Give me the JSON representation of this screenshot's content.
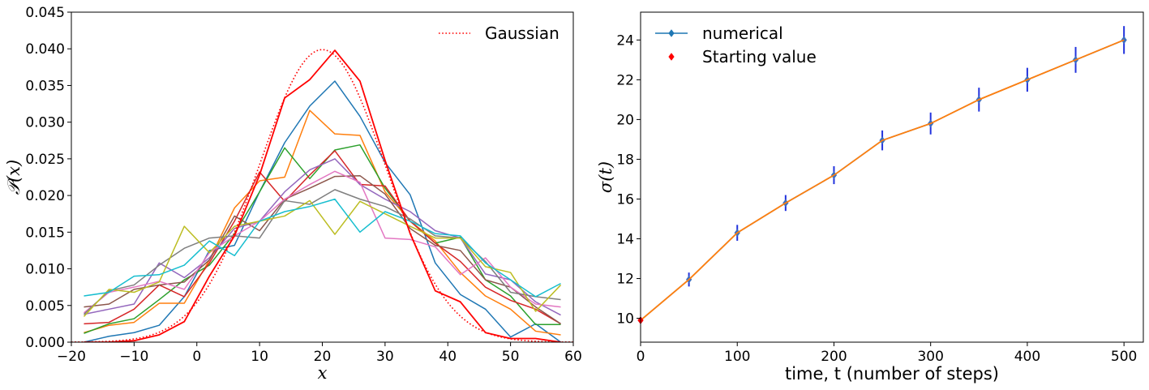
{
  "chart_data": [
    {
      "type": "line",
      "title": "",
      "xlabel": "x",
      "ylabel": "𝒫(x)",
      "xlim": [
        -20,
        60
      ],
      "ylim": [
        0.0,
        0.045
      ],
      "grid": false,
      "legend_placement": "top-right",
      "legend": [
        "Gaussian"
      ],
      "x_ticks": [
        -20,
        -10,
        0,
        10,
        20,
        30,
        40,
        50,
        60
      ],
      "x_tick_labels": [
        "−20",
        "−10",
        "0",
        "10",
        "20",
        "30",
        "40",
        "50",
        "60"
      ],
      "y_ticks": [
        0.0,
        0.005,
        0.01,
        0.015,
        0.02,
        0.025,
        0.03,
        0.035,
        0.04,
        0.045
      ],
      "y_tick_labels": [
        "0.000",
        "0.005",
        "0.010",
        "0.015",
        "0.020",
        "0.025",
        "0.030",
        "0.035",
        "0.040",
        "0.045"
      ],
      "x": [
        -18,
        -14,
        -10,
        -6,
        -2,
        2,
        6,
        10,
        14,
        18,
        22,
        26,
        30,
        34,
        38,
        42,
        46,
        50,
        54,
        58
      ],
      "series": [
        {
          "color": "#1f77b4",
          "values": [
            0.0,
            0.0008,
            0.0013,
            0.0023,
            0.0062,
            0.0125,
            0.0132,
            0.0205,
            0.0272,
            0.0322,
            0.0356,
            0.0308,
            0.0245,
            0.0201,
            0.0108,
            0.0065,
            0.0045,
            0.0007,
            0.0025,
            0.0
          ]
        },
        {
          "color": "#ff7f0e",
          "values": [
            0.0013,
            0.0023,
            0.0027,
            0.0053,
            0.0053,
            0.0112,
            0.0183,
            0.022,
            0.0225,
            0.0316,
            0.0284,
            0.0282,
            0.0205,
            0.0165,
            0.0138,
            0.0095,
            0.0063,
            0.0045,
            0.0015,
            0.001
          ]
        },
        {
          "color": "#2ca02c",
          "values": [
            0.0012,
            0.0025,
            0.0032,
            0.0058,
            0.0085,
            0.0105,
            0.0148,
            0.0205,
            0.0265,
            0.0223,
            0.0262,
            0.0269,
            0.021,
            0.0165,
            0.0135,
            0.0143,
            0.0085,
            0.0063,
            0.0024,
            0.0024
          ]
        },
        {
          "color": "#d62728",
          "values": [
            0.0025,
            0.0027,
            0.0045,
            0.0078,
            0.0062,
            0.0108,
            0.0165,
            0.0232,
            0.0192,
            0.0228,
            0.0261,
            0.0215,
            0.0213,
            0.0165,
            0.0135,
            0.011,
            0.0075,
            0.0057,
            0.0045,
            0.0025
          ]
        },
        {
          "color": "#9467bd",
          "values": [
            0.0038,
            0.0045,
            0.0052,
            0.0108,
            0.0088,
            0.0115,
            0.0155,
            0.0165,
            0.0205,
            0.0235,
            0.025,
            0.0215,
            0.0195,
            0.0178,
            0.0152,
            0.0142,
            0.0093,
            0.0085,
            0.0055,
            0.0037
          ]
        },
        {
          "color": "#8c564b",
          "values": [
            0.0048,
            0.0052,
            0.0072,
            0.0078,
            0.0082,
            0.0112,
            0.0172,
            0.0152,
            0.0195,
            0.021,
            0.0226,
            0.0227,
            0.0202,
            0.0155,
            0.0132,
            0.0125,
            0.0085,
            0.0075,
            0.0048,
            0.0025
          ]
        },
        {
          "color": "#e377c2",
          "values": [
            0.004,
            0.0068,
            0.0075,
            0.0083,
            0.0072,
            0.0122,
            0.0145,
            0.0165,
            0.0195,
            0.0215,
            0.0233,
            0.0218,
            0.0142,
            0.014,
            0.013,
            0.0092,
            0.0115,
            0.0075,
            0.0052,
            0.0048
          ]
        },
        {
          "color": "#7f7f7f",
          "values": [
            0.0038,
            0.007,
            0.0078,
            0.0105,
            0.0128,
            0.0142,
            0.0145,
            0.0142,
            0.0193,
            0.0188,
            0.0208,
            0.0195,
            0.0185,
            0.0168,
            0.0145,
            0.0142,
            0.011,
            0.0068,
            0.0062,
            0.0058
          ]
        },
        {
          "color": "#bcbd22",
          "values": [
            0.0035,
            0.0072,
            0.0068,
            0.0082,
            0.0158,
            0.0122,
            0.0158,
            0.0165,
            0.0172,
            0.0193,
            0.0147,
            0.0192,
            0.0175,
            0.0158,
            0.0142,
            0.0142,
            0.0103,
            0.0095,
            0.0042,
            0.0078
          ]
        },
        {
          "color": "#17becf",
          "values": [
            0.0063,
            0.0068,
            0.009,
            0.0092,
            0.0105,
            0.0138,
            0.0118,
            0.0165,
            0.0178,
            0.0185,
            0.0195,
            0.015,
            0.0178,
            0.0165,
            0.0148,
            0.0145,
            0.0108,
            0.0085,
            0.0062,
            0.008
          ]
        },
        {
          "color": "#ff0000",
          "values": [
            0.0,
            0.0,
            0.0002,
            0.001,
            0.0028,
            0.009,
            0.0145,
            0.0228,
            0.0333,
            0.0358,
            0.0398,
            0.0356,
            0.0248,
            0.0148,
            0.007,
            0.0055,
            0.0013,
            0.0005,
            0.0005,
            0.0
          ]
        },
        {
          "name": "Gaussian",
          "color": "#ff0000",
          "style": "dotted",
          "mean": 20,
          "std": 10,
          "peak": 0.0399
        }
      ]
    },
    {
      "type": "line",
      "title": "",
      "xlabel": "time, t (number of steps)",
      "ylabel": "σ(t)",
      "xlim": [
        0,
        520
      ],
      "ylim": [
        8.8,
        25.4
      ],
      "grid": false,
      "legend_placement": "top-left",
      "x_ticks": [
        0,
        100,
        200,
        300,
        400,
        500
      ],
      "x_tick_labels": [
        "0",
        "100",
        "200",
        "300",
        "400",
        "500"
      ],
      "y_ticks": [
        10,
        12,
        14,
        16,
        18,
        20,
        22,
        24
      ],
      "y_tick_labels": [
        "10",
        "12",
        "14",
        "16",
        "18",
        "20",
        "22",
        "24"
      ],
      "series": [
        {
          "name": "numerical",
          "color": "#1f77b4",
          "marker": "diamond",
          "x": [
            0,
            50,
            100,
            150,
            200,
            250,
            300,
            350,
            400,
            450,
            500
          ],
          "y": [
            9.9,
            11.95,
            14.3,
            15.8,
            17.2,
            18.95,
            19.8,
            21.0,
            22.0,
            23.0,
            24.0
          ],
          "error": [
            0.15,
            0.35,
            0.4,
            0.4,
            0.45,
            0.5,
            0.55,
            0.6,
            0.6,
            0.65,
            0.7
          ],
          "errorbar_color": "#2233dd"
        },
        {
          "color": "#ff7f0e",
          "x": [
            0,
            50,
            100,
            150,
            200,
            250,
            300,
            350,
            400,
            450,
            500
          ],
          "y": [
            9.9,
            11.95,
            14.3,
            15.8,
            17.2,
            18.95,
            19.8,
            21.0,
            22.0,
            23.0,
            24.0
          ]
        },
        {
          "name": "Starting value",
          "color": "#ff0000",
          "marker": "diamond",
          "x": [
            0
          ],
          "y": [
            9.9
          ]
        }
      ]
    }
  ]
}
